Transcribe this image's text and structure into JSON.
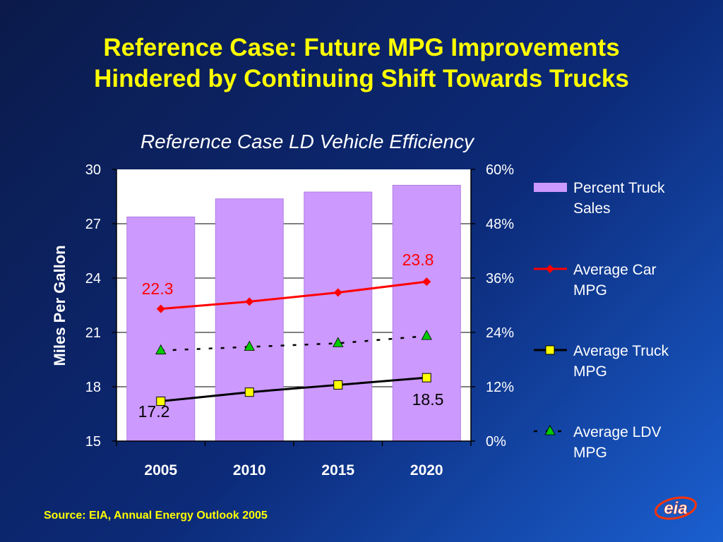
{
  "slide": {
    "title_line1": "Reference Case: Future MPG Improvements",
    "title_line2": "Hindered by Continuing Shift Towards Trucks",
    "source": "Source: EIA, Annual Energy Outlook 2005",
    "logo_text": "eia"
  },
  "colors": {
    "bar": "#cc99ff",
    "car": "#ff0000",
    "truck_marker": "#ffff00",
    "ldv_marker": "#00cc00",
    "plot_bg": "#ffffff",
    "text": "#ffffff",
    "title": "#ffff00"
  },
  "chart_data": {
    "type": "bar",
    "title": "Reference Case LD Vehicle Efficiency",
    "categories": [
      "2005",
      "2010",
      "2015",
      "2020"
    ],
    "ylabel": "Miles Per Gallon",
    "ylim": [
      15,
      30
    ],
    "yticks": [
      "30",
      "27",
      "24",
      "21",
      "18",
      "15"
    ],
    "y2lim": [
      0,
      60
    ],
    "y2ticks": [
      "60%",
      "48%",
      "36%",
      "24%",
      "12%",
      "0%"
    ],
    "grid": true,
    "legend_position": "right",
    "series": [
      {
        "name": "Percent Truck Sales",
        "type": "bar",
        "axis": "right",
        "values": [
          49.5,
          53.5,
          55,
          56.5
        ]
      },
      {
        "name": "Average Car MPG",
        "type": "line",
        "axis": "left",
        "values": [
          22.3,
          22.7,
          23.2,
          23.8
        ]
      },
      {
        "name": "Average Truck MPG",
        "type": "line",
        "axis": "left",
        "values": [
          17.2,
          17.7,
          18.1,
          18.5
        ]
      },
      {
        "name": "Average LDV MPG",
        "type": "line",
        "axis": "left",
        "values": [
          20.0,
          20.2,
          20.4,
          20.8
        ]
      }
    ],
    "legend": [
      {
        "line1": "Percent Truck",
        "line2": "Sales"
      },
      {
        "line1": "Average Car",
        "line2": "MPG"
      },
      {
        "line1": "Average Truck",
        "line2": "MPG"
      },
      {
        "line1": "Average LDV",
        "line2": "MPG"
      }
    ],
    "annotations": {
      "car_first": "22.3",
      "car_last": "23.8",
      "truck_first": "17.2",
      "truck_last": "18.5"
    }
  }
}
